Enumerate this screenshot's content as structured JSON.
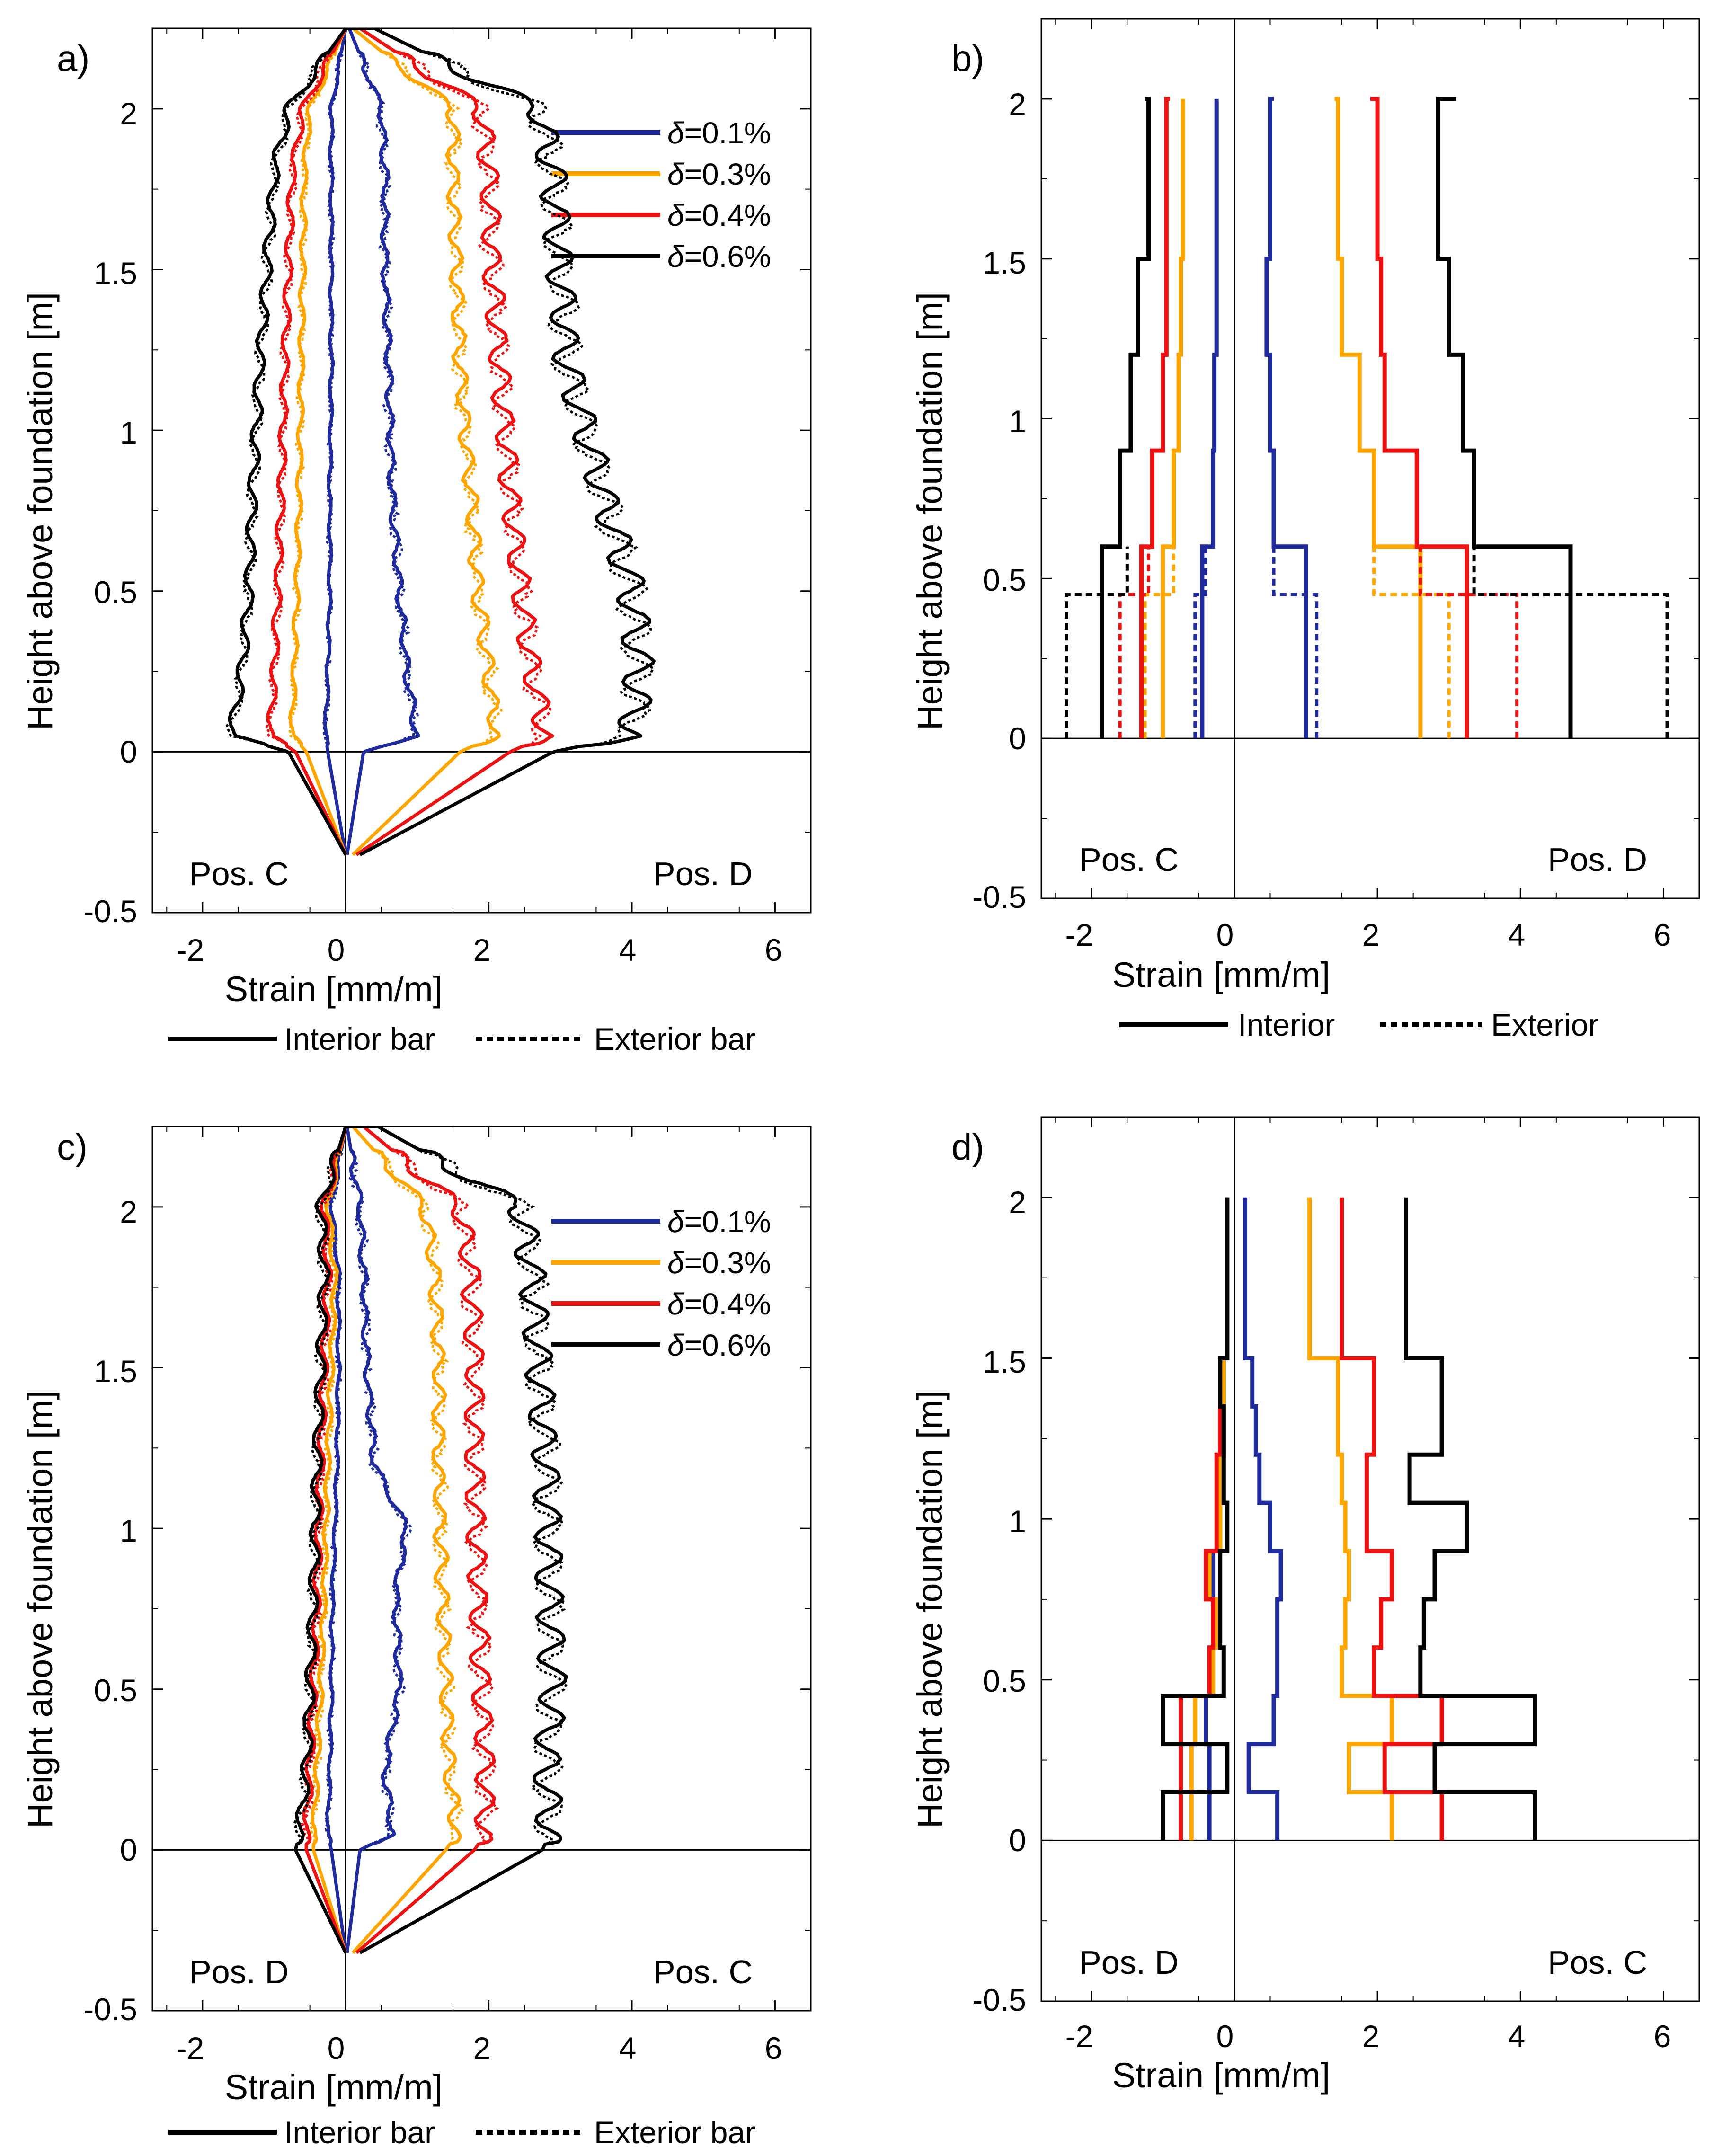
{
  "colors": {
    "d01": "#1f2a9c",
    "d03": "#ffa500",
    "d04": "#ee1111",
    "d06": "#000000"
  },
  "legend": {
    "d01": "=0.1%",
    "d03": "=0.3%",
    "d04": "=0.4%",
    "d06": "=0.6%",
    "delta": "δ",
    "interior_bar": "Interior bar",
    "exterior_bar": "Exterior bar",
    "interior": "Interior",
    "exterior": "Exterior"
  },
  "chart_data": [
    {
      "id": "a",
      "panel_label": "a)",
      "type": "line",
      "xlabel": "Strain [mm/m]",
      "ylabel": "Height above foundation [m]",
      "xlim": [
        -2.7,
        6.5
      ],
      "ylim": [
        -0.5,
        2.25
      ],
      "xticks": [
        "-2",
        "0",
        "2",
        "4",
        "6"
      ],
      "yticks": [
        "-0.5",
        "0",
        "0.5",
        "1",
        "1.5",
        "2"
      ],
      "left_position": "Pos. C",
      "right_position": "Pos. D",
      "style": "noisy",
      "series": [
        {
          "name": "δ=0.1%",
          "color": "#1f2a9c",
          "y": [
            -0.32,
            0,
            0.05,
            0.25,
            0.5,
            0.8,
            1.2,
            1.5,
            1.8,
            2.0,
            2.25
          ],
          "right": [
            0.02,
            0.25,
            1.0,
            0.85,
            0.75,
            0.65,
            0.6,
            0.55,
            0.55,
            0.5,
            0.05
          ],
          "left": [
            0,
            -0.25,
            -0.28,
            -0.25,
            -0.22,
            -0.22,
            -0.2,
            -0.2,
            -0.2,
            -0.2,
            0
          ]
        },
        {
          "name": "δ=0.3%",
          "color": "#ffa500",
          "y": [
            -0.32,
            0,
            0.05,
            0.25,
            0.5,
            0.8,
            1.2,
            1.5,
            1.8,
            2.0,
            2.25
          ],
          "right": [
            0.1,
            1.6,
            2.1,
            2.0,
            1.85,
            1.75,
            1.6,
            1.55,
            1.5,
            1.5,
            0.1
          ],
          "left": [
            0,
            -0.55,
            -0.75,
            -0.72,
            -0.68,
            -0.65,
            -0.62,
            -0.6,
            -0.58,
            -0.5,
            0
          ]
        },
        {
          "name": "δ=0.4%",
          "color": "#ee1111",
          "y": [
            -0.32,
            0,
            0.05,
            0.25,
            0.5,
            0.8,
            1.2,
            1.5,
            1.8,
            2.0,
            2.25
          ],
          "right": [
            0.15,
            2.3,
            2.8,
            2.6,
            2.45,
            2.3,
            2.15,
            2.05,
            2.0,
            1.9,
            0.2
          ],
          "left": [
            0,
            -0.7,
            -1.05,
            -1.0,
            -0.95,
            -0.9,
            -0.85,
            -0.8,
            -0.75,
            -0.6,
            0
          ]
        },
        {
          "name": "δ=0.6%",
          "color": "#000000",
          "y": [
            -0.32,
            0,
            0.05,
            0.25,
            0.5,
            0.8,
            1.2,
            1.5,
            1.8,
            2.0,
            2.25
          ],
          "right": [
            0.2,
            2.9,
            4.0,
            4.1,
            4.0,
            3.6,
            3.1,
            3.0,
            2.9,
            2.7,
            0.4
          ],
          "left": [
            0,
            -0.8,
            -1.6,
            -1.45,
            -1.35,
            -1.3,
            -1.2,
            -1.1,
            -1.0,
            -0.8,
            0
          ]
        }
      ]
    },
    {
      "id": "b",
      "panel_label": "b)",
      "type": "line",
      "xlabel": "Strain [mm/m]",
      "ylabel": "Height above foundation [m]",
      "xlim": [
        -2.7,
        6.5
      ],
      "ylim": [
        -0.5,
        2.25
      ],
      "xticks": [
        "-2",
        "0",
        "2",
        "4",
        "6"
      ],
      "yticks": [
        "-0.5",
        "0",
        "0.5",
        "1",
        "1.5",
        "2"
      ],
      "left_position": "Pos. C",
      "right_position": "Pos. D",
      "style": "step",
      "series": [
        {
          "name": "δ=0.1% interior",
          "color": "#1f2a9c",
          "dashed": false,
          "levels": [
            0,
            0.6,
            0.9,
            1.2,
            1.5,
            2.0
          ],
          "right": [
            1.0,
            0.55,
            0.5,
            0.45,
            0.5,
            0.55
          ],
          "left": [
            -0.45,
            -0.3,
            -0.28,
            -0.25,
            -0.25,
            -0.25
          ]
        },
        {
          "name": "δ=0.1% exterior",
          "color": "#1f2a9c",
          "dashed": true,
          "levels": [
            0,
            0.45,
            0.6
          ],
          "right": [
            1.15,
            0.55
          ],
          "left": [
            -0.55,
            -0.4
          ]
        },
        {
          "name": "δ=0.3% interior",
          "color": "#ffa500",
          "dashed": false,
          "levels": [
            0,
            0.6,
            0.9,
            1.2,
            1.5,
            2.0
          ],
          "right": [
            2.6,
            1.95,
            1.75,
            1.5,
            1.45,
            1.4
          ],
          "left": [
            -1.0,
            -0.85,
            -0.78,
            -0.75,
            -0.72,
            -0.72
          ]
        },
        {
          "name": "δ=0.3% exterior",
          "color": "#ffa500",
          "dashed": true,
          "levels": [
            0,
            0.45,
            0.6
          ],
          "right": [
            3.0,
            1.95
          ],
          "left": [
            -1.25,
            -0.85
          ]
        },
        {
          "name": "δ=0.4% interior",
          "color": "#ee1111",
          "dashed": false,
          "levels": [
            0,
            0.6,
            0.9,
            1.2,
            1.5,
            2.0
          ],
          "right": [
            3.25,
            2.55,
            2.1,
            2.05,
            2.0,
            1.9
          ],
          "left": [
            -1.3,
            -1.15,
            -1.0,
            -0.95,
            -0.95,
            -0.9
          ]
        },
        {
          "name": "δ=0.4% exterior",
          "color": "#ee1111",
          "dashed": true,
          "levels": [
            0,
            0.45,
            0.6
          ],
          "right": [
            3.95,
            2.6
          ],
          "left": [
            -1.6,
            -1.2
          ]
        },
        {
          "name": "δ=0.6% interior",
          "color": "#000000",
          "dashed": false,
          "levels": [
            0,
            0.6,
            0.9,
            1.2,
            1.5,
            2.0
          ],
          "right": [
            4.7,
            3.35,
            3.2,
            3.0,
            2.85,
            3.1
          ],
          "left": [
            -1.85,
            -1.6,
            -1.45,
            -1.35,
            -1.2,
            -1.25
          ]
        },
        {
          "name": "δ=0.6% exterior",
          "color": "#000000",
          "dashed": true,
          "levels": [
            0,
            0.45,
            0.6
          ],
          "right": [
            6.05,
            3.35
          ],
          "left": [
            -2.35,
            -1.5
          ]
        }
      ]
    },
    {
      "id": "c",
      "panel_label": "c)",
      "type": "line",
      "xlabel": "Strain [mm/m]",
      "ylabel": "Height above foundation [m]",
      "xlim": [
        -2.7,
        6.5
      ],
      "ylim": [
        -0.5,
        2.25
      ],
      "xticks": [
        "-2",
        "0",
        "2",
        "4",
        "6"
      ],
      "yticks": [
        "-0.5",
        "0",
        "0.5",
        "1",
        "1.5",
        "2"
      ],
      "left_position": "Pos. D",
      "right_position": "Pos. C",
      "style": "noisy",
      "series": [
        {
          "name": "δ=0.1%",
          "color": "#1f2a9c",
          "y": [
            -0.32,
            0,
            0.05,
            0.25,
            0.5,
            0.8,
            1.0,
            1.2,
            1.5,
            1.8,
            2.0,
            2.25
          ],
          "right": [
            0.02,
            0.2,
            0.65,
            0.55,
            0.75,
            0.7,
            0.85,
            0.4,
            0.3,
            0.25,
            0.2,
            0.02
          ],
          "left": [
            0,
            -0.2,
            -0.25,
            -0.22,
            -0.2,
            -0.18,
            -0.15,
            -0.12,
            -0.1,
            -0.1,
            -0.2,
            0
          ]
        },
        {
          "name": "δ=0.3%",
          "color": "#ffa500",
          "y": [
            -0.32,
            0,
            0.05,
            0.25,
            0.5,
            0.8,
            1.2,
            1.5,
            1.8,
            2.0,
            2.25
          ],
          "right": [
            0.1,
            1.4,
            1.55,
            1.45,
            1.4,
            1.35,
            1.3,
            1.3,
            1.25,
            1.1,
            0.1
          ],
          "left": [
            0,
            -0.45,
            -0.45,
            -0.4,
            -0.35,
            -0.3,
            -0.25,
            -0.2,
            -0.15,
            -0.25,
            0
          ]
        },
        {
          "name": "δ=0.4%",
          "color": "#ee1111",
          "y": [
            -0.32,
            0,
            0.05,
            0.25,
            0.5,
            0.8,
            1.2,
            1.5,
            1.8,
            2.0,
            2.25
          ],
          "right": [
            0.15,
            1.8,
            1.95,
            1.95,
            1.9,
            1.85,
            1.8,
            1.8,
            1.75,
            1.6,
            0.25
          ],
          "left": [
            0,
            -0.55,
            -0.55,
            -0.5,
            -0.45,
            -0.4,
            -0.35,
            -0.3,
            -0.25,
            -0.3,
            0
          ]
        },
        {
          "name": "δ=0.6%",
          "color": "#000000",
          "y": [
            -0.32,
            0,
            0.05,
            0.25,
            0.5,
            0.8,
            1.2,
            1.5,
            1.8,
            2.0,
            2.25
          ],
          "right": [
            0.2,
            2.75,
            2.85,
            2.8,
            2.9,
            2.85,
            2.8,
            2.7,
            2.6,
            2.45,
            0.45
          ],
          "left": [
            0,
            -0.7,
            -0.65,
            -0.55,
            -0.5,
            -0.45,
            -0.4,
            -0.35,
            -0.3,
            -0.35,
            0
          ]
        }
      ]
    },
    {
      "id": "d",
      "panel_label": "d)",
      "type": "line",
      "xlabel": "Strain [mm/m]",
      "ylabel": "Height above foundation [m]",
      "xlim": [
        -2.7,
        6.5
      ],
      "ylim": [
        -0.5,
        2.25
      ],
      "xticks": [
        "-2",
        "0",
        "2",
        "4",
        "6"
      ],
      "yticks": [
        "-0.5",
        "0",
        "0.5",
        "1",
        "1.5",
        "2"
      ],
      "left_position": "Pos. D",
      "right_position": "Pos. C",
      "style": "step",
      "series": [
        {
          "name": "δ=0.1%",
          "color": "#1f2a9c",
          "dashed": false,
          "levels": [
            0,
            0.15,
            0.3,
            0.45,
            0.6,
            0.75,
            0.9,
            1.05,
            1.2,
            1.35,
            1.5,
            2.0
          ],
          "right": [
            0.6,
            0.2,
            0.55,
            0.6,
            0.6,
            0.65,
            0.5,
            0.35,
            0.3,
            0.25,
            0.15
          ],
          "left": [
            -0.35,
            -0.35,
            -0.4,
            -0.3,
            -0.25,
            -0.3,
            -0.2,
            -0.2,
            -0.15,
            -0.15,
            -0.1
          ]
        },
        {
          "name": "δ=0.3%",
          "color": "#ffa500",
          "dashed": false,
          "levels": [
            0,
            0.15,
            0.3,
            0.45,
            0.6,
            0.75,
            0.9,
            1.05,
            1.2,
            1.35,
            1.5,
            2.0
          ],
          "right": [
            2.2,
            1.6,
            2.2,
            1.5,
            1.55,
            1.6,
            1.55,
            1.5,
            1.45,
            1.45,
            1.05
          ],
          "left": [
            -0.6,
            -0.6,
            -0.55,
            -0.3,
            -0.25,
            -0.35,
            -0.2,
            -0.2,
            -0.15,
            -0.15,
            -0.1
          ]
        },
        {
          "name": "δ=0.4%",
          "color": "#ee1111",
          "dashed": false,
          "levels": [
            0,
            0.15,
            0.3,
            0.45,
            0.6,
            0.75,
            0.9,
            1.05,
            1.2,
            1.35,
            1.5,
            2.0
          ],
          "right": [
            2.9,
            2.1,
            2.9,
            1.95,
            2.05,
            2.2,
            1.85,
            1.85,
            1.95,
            1.95,
            1.5
          ],
          "left": [
            -0.75,
            -0.75,
            -0.75,
            -0.35,
            -0.3,
            -0.4,
            -0.25,
            -0.25,
            -0.2,
            -0.2,
            -0.1
          ]
        },
        {
          "name": "δ=0.6%",
          "color": "#000000",
          "dashed": false,
          "levels": [
            0,
            0.15,
            0.3,
            0.45,
            0.6,
            0.75,
            0.9,
            1.05,
            1.2,
            1.35,
            1.5,
            2.0
          ],
          "right": [
            4.2,
            2.8,
            4.2,
            2.6,
            2.65,
            2.8,
            3.25,
            2.45,
            2.9,
            2.9,
            2.4
          ],
          "left": [
            -1.0,
            -0.1,
            -1.0,
            -0.15,
            -0.2,
            -0.2,
            -0.1,
            -0.15,
            -0.15,
            -0.2,
            -0.1
          ]
        }
      ]
    }
  ]
}
